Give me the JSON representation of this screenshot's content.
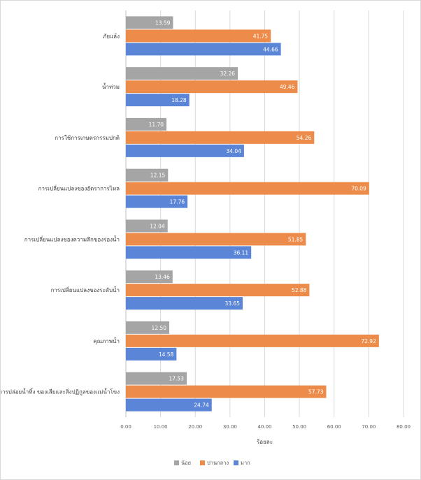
{
  "chart_data": {
    "type": "bar",
    "orientation": "horizontal",
    "title": "",
    "xlabel": "ร้อยละ",
    "ylabel": "",
    "xlim": [
      0,
      80
    ],
    "x_ticks": [
      "0.00",
      "10.00",
      "20.00",
      "30.00",
      "40.00",
      "50.00",
      "60.00",
      "70.00",
      "80.00"
    ],
    "grid": true,
    "legend_position": "bottom",
    "categories": [
      "ภัยแล้ง",
      "น้ำท่วม",
      "การใช้การเกษตรกรรมปกติ",
      "การเปลี่ยนแปลงของอัตราการไหล",
      "การเปลี่ยนแปลงของความลึกของร่องน้ำ",
      "การเปลี่ยนแปลงของระดับน้ำ",
      "คุณภาพน้ำ",
      "การปล่อยน้ำทิ้ง ของเสียและสิ่งปฏิกูลของแม่น้ำโขง"
    ],
    "series": [
      {
        "name": "น้อย",
        "color": "#a5a5a5",
        "values": [
          13.59,
          32.26,
          11.7,
          12.15,
          12.04,
          13.46,
          12.5,
          17.53
        ],
        "labels": [
          "13.59",
          "32.26",
          "11.70",
          "12.15",
          "12.04",
          "13.46",
          "12.50",
          "17.53"
        ]
      },
      {
        "name": "ปานกลาง",
        "color": "#ed8c4a",
        "values": [
          41.75,
          49.46,
          54.26,
          70.09,
          51.85,
          52.88,
          72.92,
          57.73
        ],
        "labels": [
          "41.75",
          "49.46",
          "54.26",
          "70.09",
          "51.85",
          "52.88",
          "72.92",
          "57.73"
        ]
      },
      {
        "name": "มาก",
        "color": "#5b85d6",
        "values": [
          44.66,
          18.28,
          34.04,
          17.76,
          36.11,
          33.65,
          14.58,
          24.74
        ],
        "labels": [
          "44.66",
          "18.28",
          "34.04",
          "17.76",
          "36.11",
          "33.65",
          "14.58",
          "24.74"
        ]
      }
    ]
  }
}
